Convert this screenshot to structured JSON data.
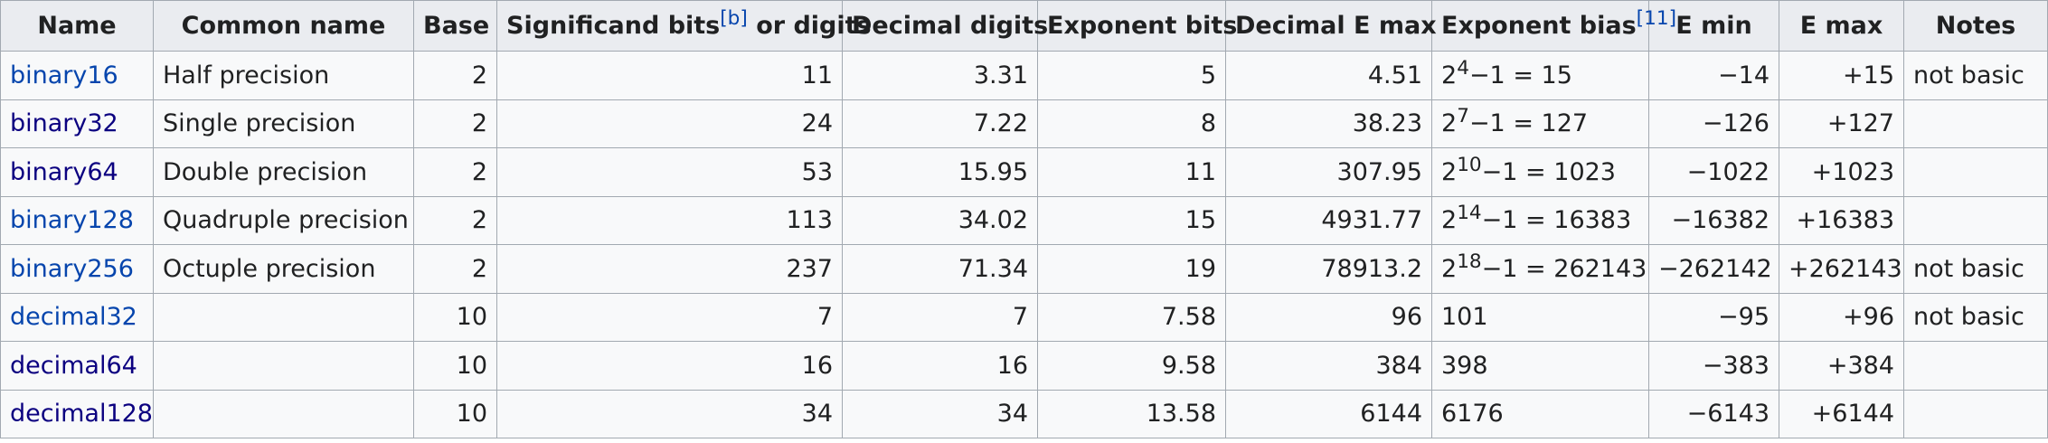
{
  "colors": {
    "link": "#0645ad",
    "link_visited": "#0b0080",
    "header_bg": "#eaecf0",
    "cell_bg": "#f8f9fa",
    "border": "#a2a9b1"
  },
  "headers": {
    "name": "Name",
    "common_name": "Common name",
    "base": "Base",
    "significand_pre": "Significand bits",
    "significand_ref": "[b]",
    "significand_post": " or digits",
    "decimal_digits": "Decimal digits",
    "exponent_bits": "Exponent bits",
    "decimal_e_max": "Decimal E max",
    "exponent_bias": "Exponent bias",
    "exponent_bias_ref": "[11]",
    "e_min": "E min",
    "e_max": "E max",
    "notes": "Notes"
  },
  "rows": [
    {
      "name": "binary16",
      "common": "Half precision",
      "base": "2",
      "sig": "11",
      "dec_digits": "3.31",
      "exp_bits": "5",
      "dec_emax": "4.51",
      "bias_base": "2",
      "bias_exp": "4",
      "bias_rest": "−1 = 15",
      "emin": "−14",
      "emax": "+15",
      "notes": "not basic"
    },
    {
      "name": "binary32",
      "common": "Single precision",
      "base": "2",
      "sig": "24",
      "dec_digits": "7.22",
      "exp_bits": "8",
      "dec_emax": "38.23",
      "bias_base": "2",
      "bias_exp": "7",
      "bias_rest": "−1 = 127",
      "emin": "−126",
      "emax": "+127",
      "notes": ""
    },
    {
      "name": "binary64",
      "common": "Double precision",
      "base": "2",
      "sig": "53",
      "dec_digits": "15.95",
      "exp_bits": "11",
      "dec_emax": "307.95",
      "bias_base": "2",
      "bias_exp": "10",
      "bias_rest": "−1 = 1023",
      "emin": "−1022",
      "emax": "+1023",
      "notes": ""
    },
    {
      "name": "binary128",
      "common": "Quadruple precision",
      "base": "2",
      "sig": "113",
      "dec_digits": "34.02",
      "exp_bits": "15",
      "dec_emax": "4931.77",
      "bias_base": "2",
      "bias_exp": "14",
      "bias_rest": "−1 = 16383",
      "emin": "−16382",
      "emax": "+16383",
      "notes": ""
    },
    {
      "name": "binary256",
      "common": "Octuple precision",
      "base": "2",
      "sig": "237",
      "dec_digits": "71.34",
      "exp_bits": "19",
      "dec_emax": "78913.2",
      "bias_base": "2",
      "bias_exp": "18",
      "bias_rest": "−1 = 262143",
      "emin": "−262142",
      "emax": "+262143",
      "notes": "not basic"
    },
    {
      "name": "decimal32",
      "common": "",
      "base": "10",
      "sig": "7",
      "dec_digits": "7",
      "exp_bits": "7.58",
      "dec_emax": "96",
      "bias_base": "101",
      "bias_exp": "",
      "bias_rest": "",
      "emin": "−95",
      "emax": "+96",
      "notes": "not basic"
    },
    {
      "name": "decimal64",
      "common": "",
      "base": "10",
      "sig": "16",
      "dec_digits": "16",
      "exp_bits": "9.58",
      "dec_emax": "384",
      "bias_base": "398",
      "bias_exp": "",
      "bias_rest": "",
      "emin": "−383",
      "emax": "+384",
      "notes": ""
    },
    {
      "name": "decimal128",
      "common": "",
      "base": "10",
      "sig": "34",
      "dec_digits": "34",
      "exp_bits": "13.58",
      "dec_emax": "6144",
      "bias_base": "6176",
      "bias_exp": "",
      "bias_rest": "",
      "emin": "−6143",
      "emax": "+6144",
      "notes": ""
    }
  ]
}
